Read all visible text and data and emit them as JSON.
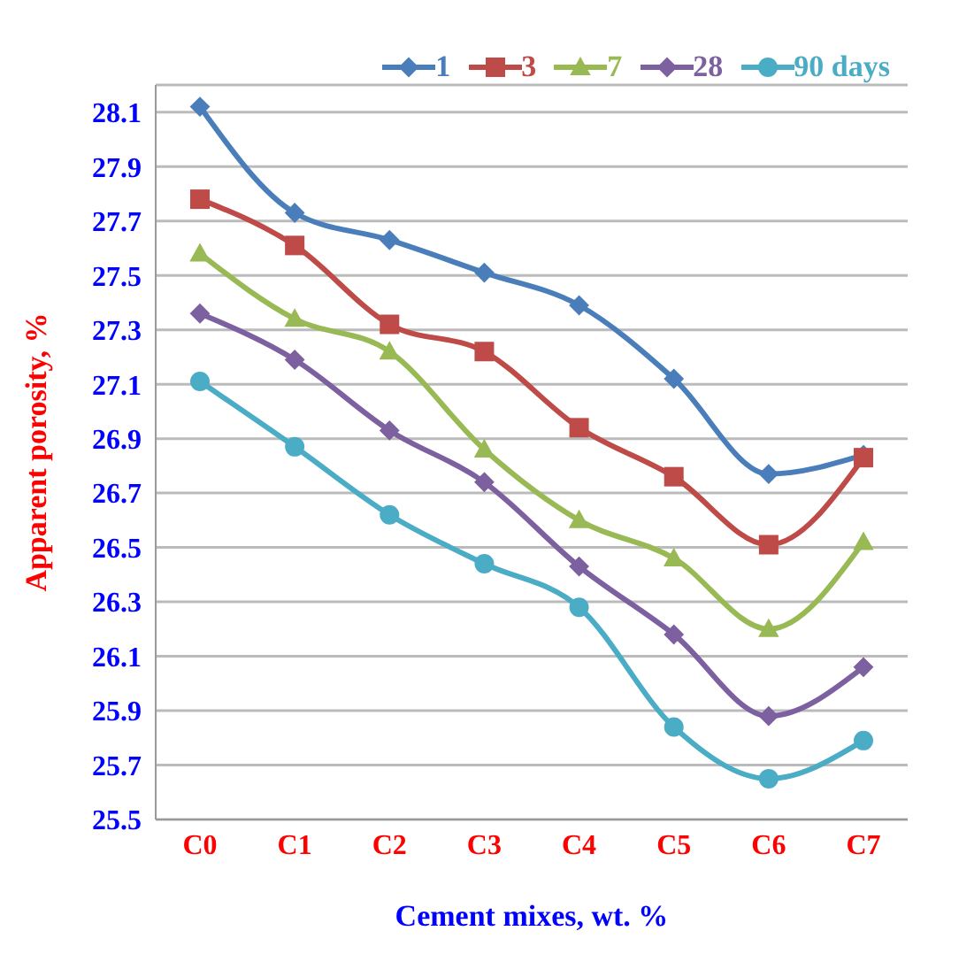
{
  "chart_data": {
    "type": "line",
    "xlabel": "Cement mixes, wt. %",
    "ylabel": "Apparent porosity, %",
    "categories": [
      "C0",
      "C1",
      "C2",
      "C3",
      "C4",
      "C5",
      "C6",
      "C7"
    ],
    "series": [
      {
        "name": "1",
        "color": "#4a7ebb",
        "marker": "diamond",
        "values": [
          28.12,
          27.73,
          27.63,
          27.51,
          27.39,
          27.12,
          26.77,
          26.84
        ]
      },
      {
        "name": "3",
        "color": "#be4b48",
        "marker": "square",
        "values": [
          27.78,
          27.61,
          27.32,
          27.22,
          26.94,
          26.76,
          26.51,
          26.83
        ]
      },
      {
        "name": "7",
        "color": "#98b954",
        "marker": "triangle",
        "values": [
          27.58,
          27.34,
          27.22,
          26.86,
          26.6,
          26.46,
          26.2,
          26.52
        ]
      },
      {
        "name": "28",
        "color": "#7d60a0",
        "marker": "diamond",
        "values": [
          27.36,
          27.19,
          26.93,
          26.74,
          26.43,
          26.18,
          25.88,
          26.06
        ]
      },
      {
        "name": "90 days",
        "color": "#4bacc6",
        "marker": "circle",
        "values": [
          27.11,
          26.87,
          26.62,
          26.44,
          26.28,
          25.84,
          25.65,
          25.79
        ]
      }
    ],
    "ylim": [
      25.5,
      28.2
    ],
    "yticks": [
      25.5,
      25.7,
      25.9,
      26.1,
      26.3,
      26.5,
      26.7,
      26.9,
      27.1,
      27.3,
      27.5,
      27.7,
      27.9,
      28.1
    ],
    "grid": "y",
    "legend": "top right",
    "line_style": "solid"
  }
}
